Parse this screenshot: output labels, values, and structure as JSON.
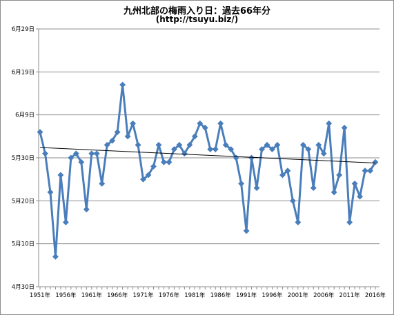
{
  "chart_data": {
    "type": "line",
    "title": "九州北部の梅雨入り日：過去66年分",
    "subtitle": "(http://tsuyu.biz/)",
    "xlabel": "",
    "ylabel": "",
    "x": [
      1951,
      1952,
      1953,
      1954,
      1955,
      1956,
      1957,
      1958,
      1959,
      1960,
      1961,
      1962,
      1963,
      1964,
      1965,
      1966,
      1967,
      1968,
      1969,
      1970,
      1971,
      1972,
      1973,
      1974,
      1975,
      1976,
      1977,
      1978,
      1979,
      1980,
      1981,
      1982,
      1983,
      1984,
      1985,
      1986,
      1987,
      1988,
      1989,
      1990,
      1991,
      1992,
      1993,
      1994,
      1995,
      1996,
      1997,
      1998,
      1999,
      2000,
      2001,
      2002,
      2003,
      2004,
      2005,
      2006,
      2007,
      2008,
      2009,
      2010,
      2011,
      2012,
      2013,
      2014,
      2015,
      2016
    ],
    "x_tick_labels": [
      "1951年",
      "1956年",
      "1961年",
      "1966年",
      "1971年",
      "1976年",
      "1981年",
      "1986年",
      "1991年",
      "1996年",
      "2001年",
      "2006年",
      "2011年",
      "2016年"
    ],
    "y_tick_labels": [
      "4月30日",
      "5月10日",
      "5月20日",
      "5月30日",
      "6月9日",
      "6月19日",
      "6月29日"
    ],
    "ylim": [
      0,
      60
    ],
    "series": [
      {
        "values": [
          36,
          31,
          22,
          7,
          26,
          15,
          30,
          31,
          29,
          18,
          31,
          31,
          24,
          33,
          34,
          36,
          47,
          35,
          38,
          33,
          25,
          26,
          28,
          33,
          29,
          29,
          32,
          33,
          31,
          33,
          35,
          38,
          37,
          32,
          32,
          38,
          33,
          32,
          30,
          24,
          13,
          30,
          23,
          32,
          33,
          32,
          33,
          26,
          27,
          20,
          15,
          33,
          32,
          23,
          33,
          31,
          38,
          22,
          26,
          37,
          15,
          24,
          21,
          27,
          27,
          29
        ],
        "color": "#4a7ebb"
      }
    ],
    "trendline": {
      "start": 32.4,
      "end": 28.8,
      "color": "#000000"
    },
    "grid": true,
    "legend": "none"
  }
}
